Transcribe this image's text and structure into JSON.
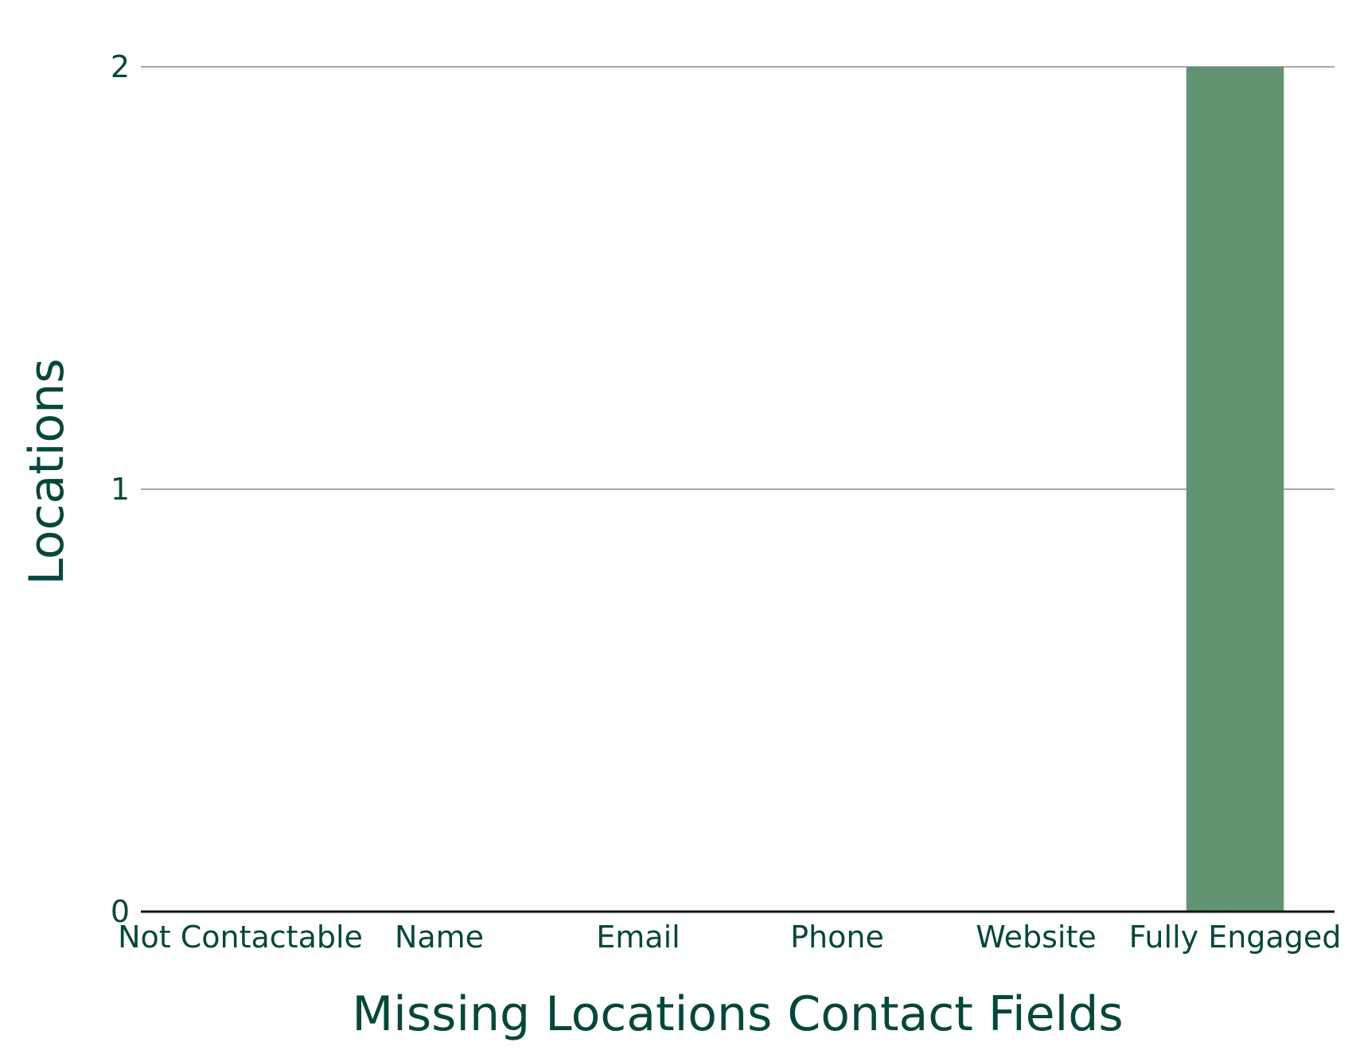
{
  "chart_data": {
    "type": "bar",
    "categories": [
      "Not Contactable",
      "Name",
      "Email",
      "Phone",
      "Website",
      "Fully Engaged"
    ],
    "values": [
      0,
      0,
      0,
      0,
      0,
      2
    ],
    "title": "",
    "xlabel": "Missing Locations Contact Fields",
    "ylabel": "Locations",
    "ylim": [
      0,
      2
    ],
    "yticks": [
      0,
      1,
      2
    ],
    "grid": "horizontal",
    "colors": {
      "bar": "#609472",
      "text": "#06473b",
      "gridline": "#8b8b8b",
      "baseline": "#111111"
    }
  }
}
